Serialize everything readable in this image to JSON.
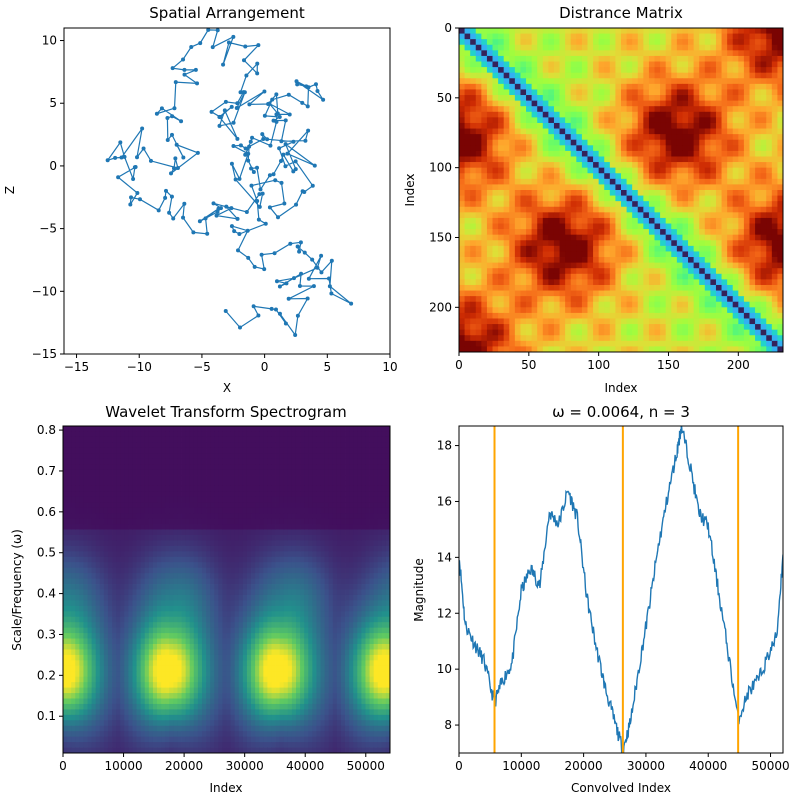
{
  "chart_data": [
    {
      "type": "line",
      "title": "Spatial Arrangement",
      "xlabel": "X",
      "ylabel": "Z",
      "xlim": [
        -16,
        10
      ],
      "ylim": [
        -15,
        11
      ],
      "xticks": [
        -15,
        -10,
        -5,
        0,
        5,
        10
      ],
      "yticks": [
        -15,
        -10,
        -5,
        0,
        5,
        10
      ],
      "color": "#1f77b4",
      "markers": true,
      "point_count": 232
    },
    {
      "type": "heatmap",
      "title": "Distrance Matrix",
      "xlabel": "Index",
      "ylabel": "Index",
      "size": 232,
      "xticks": [
        0,
        50,
        100,
        150,
        200
      ],
      "yticks": [
        0,
        50,
        100,
        150,
        200
      ],
      "colormap": "turbo",
      "hotspots": [
        {
          "row": 76,
          "col": 155
        },
        {
          "row": 155,
          "col": 76
        },
        {
          "row": 0,
          "col": 232
        },
        {
          "row": 232,
          "col": 0
        },
        {
          "row": 155,
          "col": 232
        },
        {
          "row": 76,
          "col": 0
        }
      ]
    },
    {
      "type": "heatmap",
      "title": "Wavelet Transform Spectrogram",
      "xlabel": "Index",
      "ylabel": "Scale/Frequency (ω)",
      "xlim": [
        0,
        54000
      ],
      "ylim": [
        0.01,
        0.81
      ],
      "xticks": [
        0,
        10000,
        20000,
        30000,
        40000,
        50000
      ],
      "yticks": [
        0.1,
        0.2,
        0.3,
        0.4,
        0.5,
        0.6,
        0.7,
        0.8
      ],
      "colormap": "viridis",
      "bright_bands": [
        {
          "x": 0,
          "y": 0.21
        },
        {
          "x": 17500,
          "y": 0.21
        },
        {
          "x": 35500,
          "y": 0.21
        },
        {
          "x": 53500,
          "y": 0.21
        }
      ]
    },
    {
      "type": "line",
      "title": "ω = 0.0064, n = 3",
      "xlabel": "Convolved Index",
      "ylabel": "Magnitude",
      "xlim": [
        0,
        52000
      ],
      "ylim": [
        7,
        18.7
      ],
      "xticks": [
        0,
        10000,
        20000,
        30000,
        40000,
        50000
      ],
      "yticks": [
        8,
        10,
        12,
        14,
        16,
        18
      ],
      "color": "#1f77b4",
      "vline_color": "#ffa500",
      "vlines": [
        5700,
        26300,
        44800
      ],
      "series": [
        {
          "x": [
            0,
            1000,
            2500,
            4000,
            5700,
            7000,
            8500,
            10000,
            11500,
            13000,
            14500,
            16000,
            17500,
            19000,
            20500,
            22000,
            23500,
            25000,
            26300,
            27500,
            29000,
            30500,
            32000,
            33500,
            35000,
            35700,
            37000,
            38500,
            40000,
            41500,
            43000,
            44800,
            46500,
            48000,
            49500,
            51000,
            52000
          ],
          "values": [
            14.1,
            11.6,
            10.9,
            10.3,
            8.8,
            9.6,
            10.2,
            12.8,
            13.6,
            13.0,
            15.6,
            15.2,
            16.4,
            15.4,
            12.6,
            10.8,
            9.3,
            8.1,
            7.1,
            8.1,
            10.2,
            12.2,
            14.4,
            16.2,
            17.8,
            18.7,
            17.4,
            15.6,
            15.1,
            13.0,
            10.9,
            8.2,
            9.2,
            9.6,
            10.4,
            11.2,
            14.1
          ]
        }
      ]
    }
  ]
}
